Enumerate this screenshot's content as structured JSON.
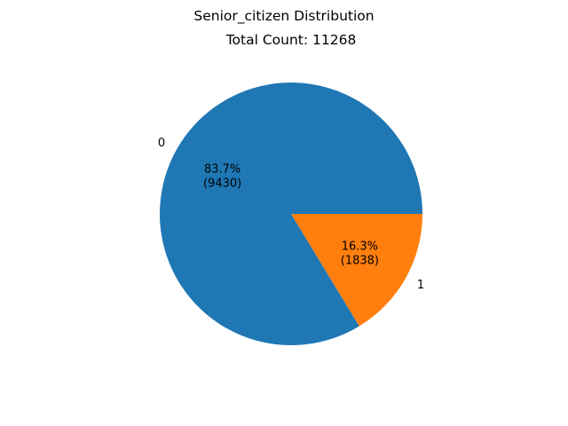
{
  "chart_data": {
    "type": "pie",
    "suptitle": "Senior_citizen Distribution",
    "title": "Total Count: 11268",
    "categories": [
      "0",
      "1"
    ],
    "values": [
      9430,
      1838
    ],
    "percent_labels": [
      "83.7%",
      "16.3%"
    ],
    "count_labels": [
      "(9430)",
      "(1838)"
    ],
    "colors": [
      "#1f77b4",
      "#ff7f0e"
    ],
    "start_angle_deg": 0,
    "direction": "counterclockwise"
  }
}
